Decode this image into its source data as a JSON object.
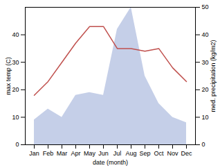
{
  "chart_data": {
    "type": "line",
    "categories": [
      "Jan",
      "Feb",
      "Mar",
      "Apr",
      "May",
      "Jun",
      "Jul",
      "Aug",
      "Sep",
      "Oct",
      "Nov",
      "Dec"
    ],
    "series": [
      {
        "type": "area",
        "color": "#c5cfe8",
        "axis": "y2",
        "values": [
          9,
          13,
          10,
          18,
          19,
          18,
          42,
          50,
          25,
          15,
          10,
          8
        ]
      },
      {
        "type": "line",
        "color": "#c0504d",
        "values": [
          18,
          23,
          30,
          37,
          43,
          43,
          35,
          35,
          34,
          35,
          28,
          23
        ]
      }
    ],
    "xlabel": "date (month)",
    "ylabel": "max temp (C)",
    "y2label": "med. precipitation (kg/m2)",
    "ylim": [
      0,
      50
    ],
    "yticks": [
      0,
      10,
      20,
      30,
      40
    ],
    "y2lim": [
      0,
      50
    ],
    "y2ticks": [
      0,
      10,
      20,
      30,
      40,
      50
    ],
    "grid": false
  }
}
